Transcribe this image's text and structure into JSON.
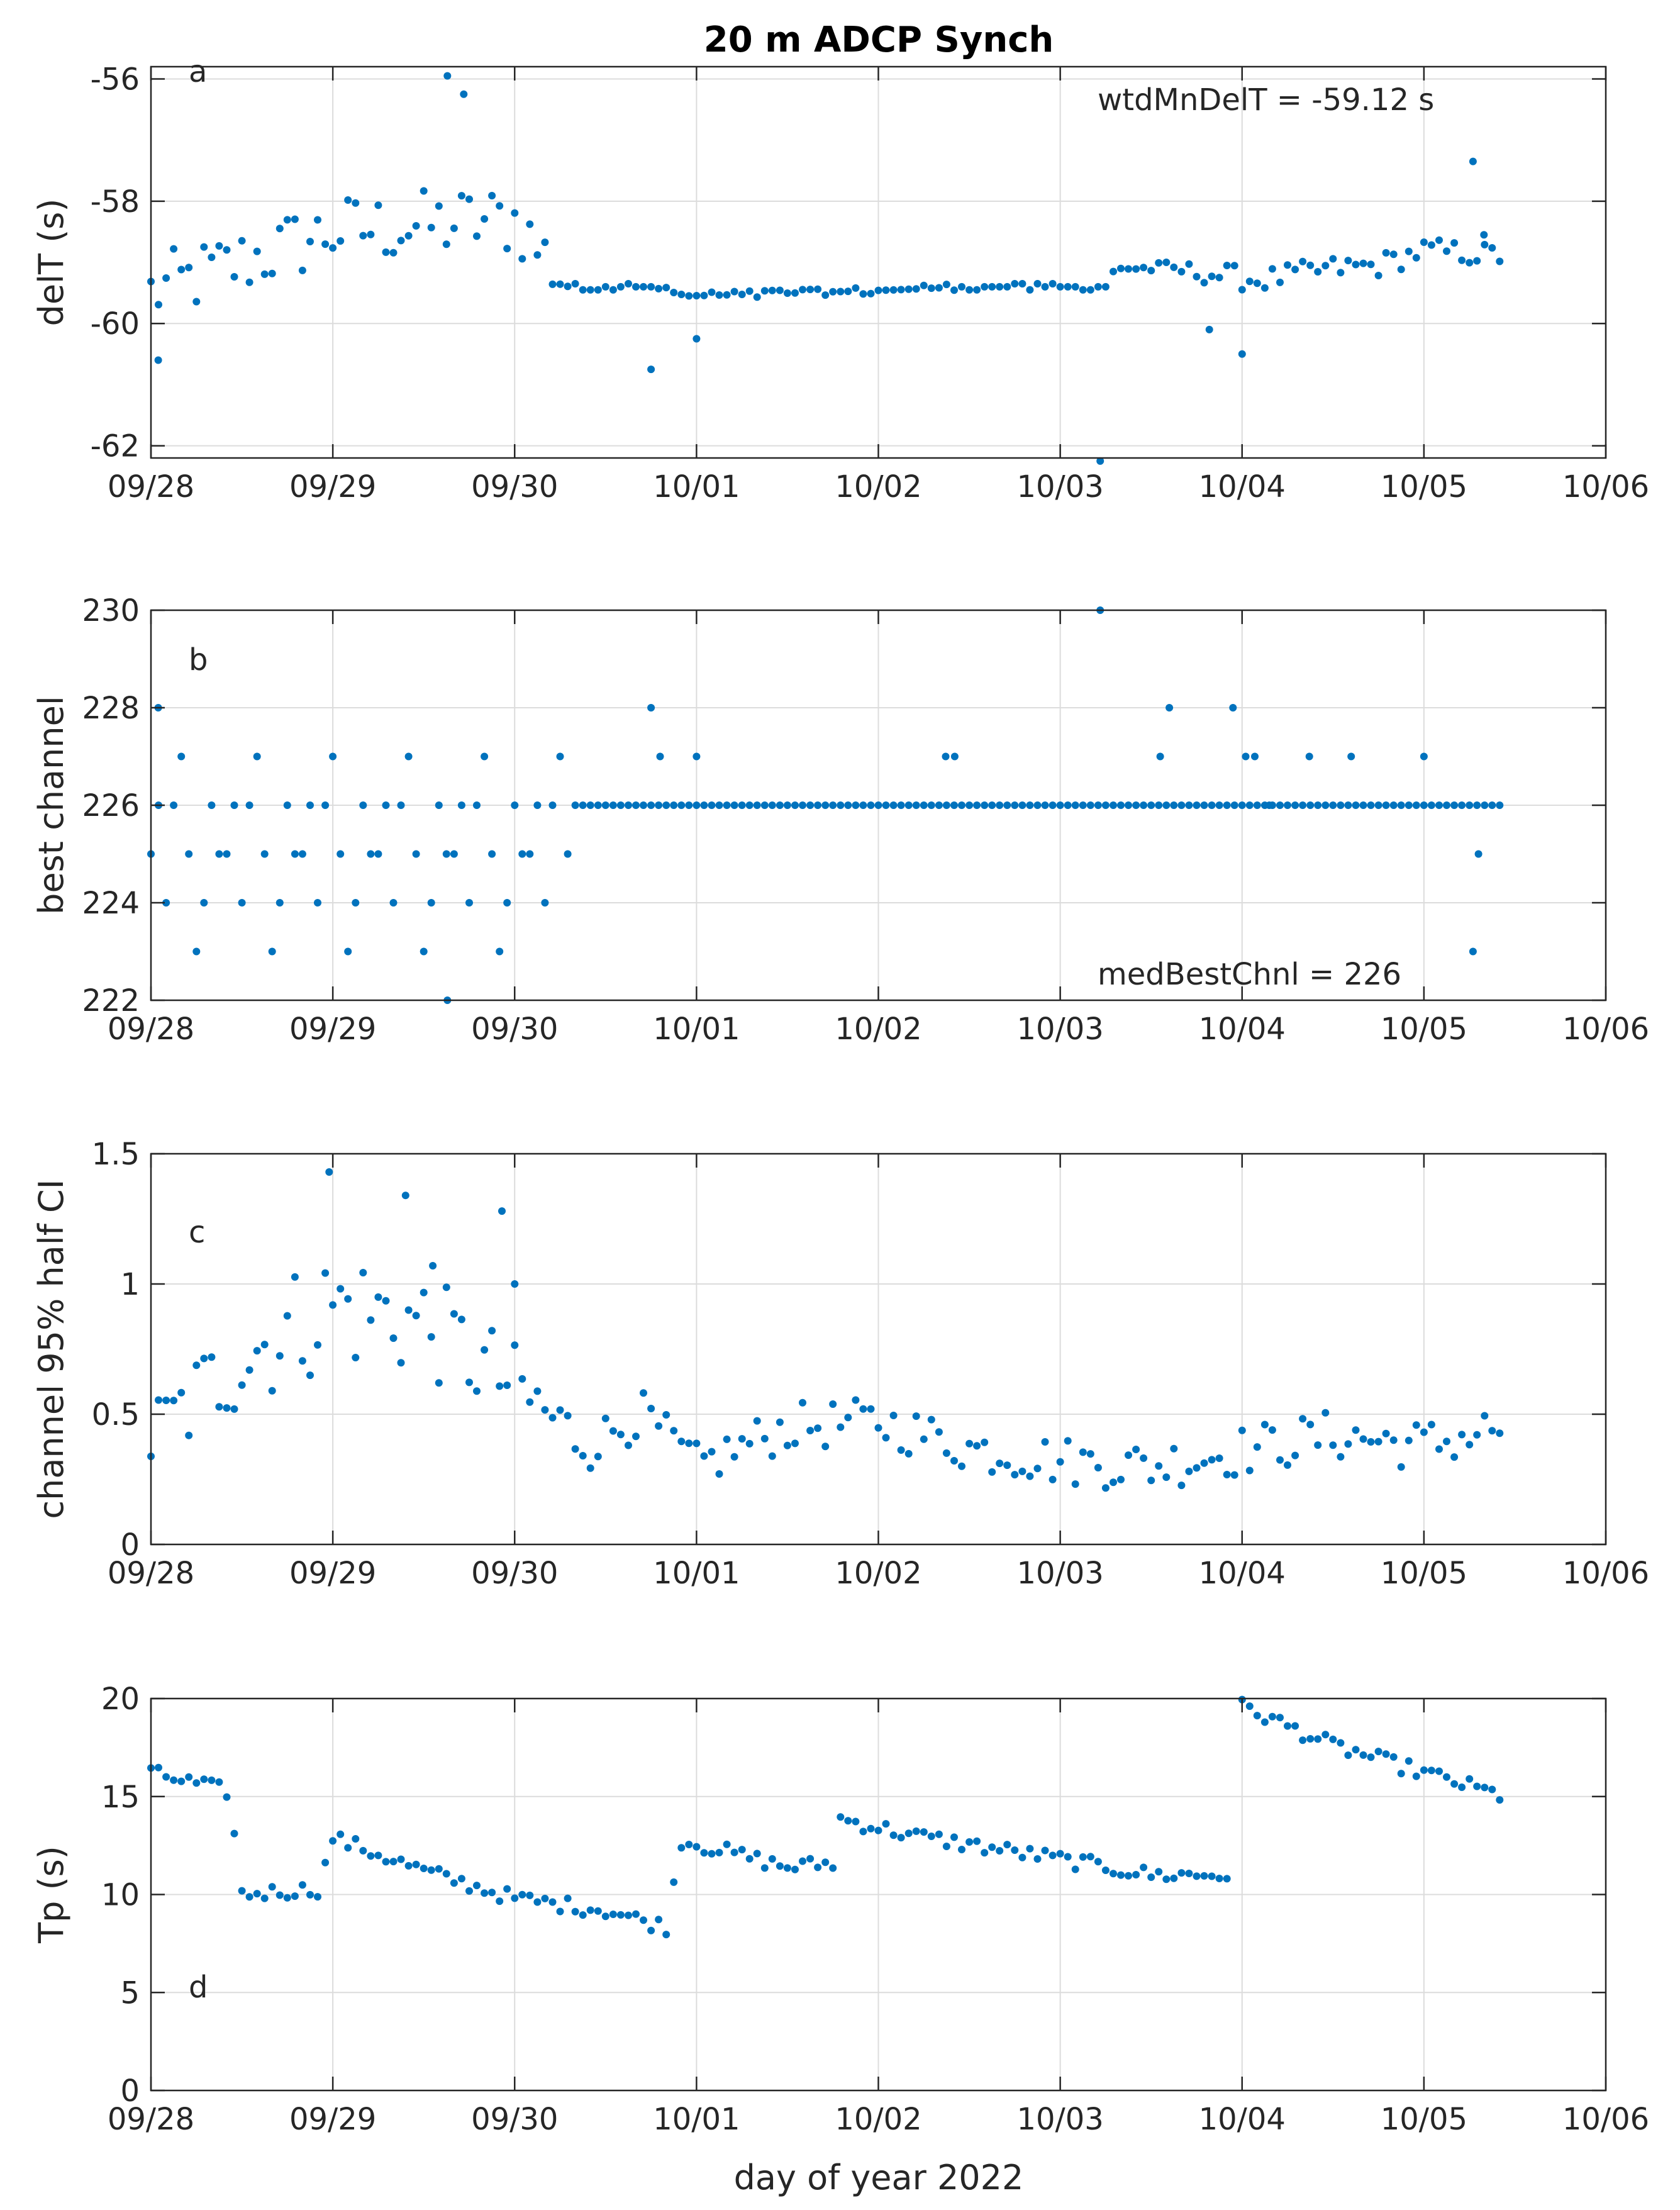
{
  "title": "20 m ADCP Synch",
  "xlabel": "day of year 2022",
  "x_tick_labels": [
    "09/28",
    "09/29",
    "09/30",
    "10/01",
    "10/02",
    "10/03",
    "10/04",
    "10/05",
    "10/06"
  ],
  "colors": {
    "marker": "#0072BD",
    "grid": "#dcdcdc",
    "axes": "#262626"
  },
  "chart_data": [
    {
      "type": "scatter",
      "panel_label": "a",
      "ylabel": "delT (s)",
      "ylim": [
        -62.2,
        -55.8
      ],
      "yticks": [
        -62,
        -60,
        -58,
        -56
      ],
      "xlim": [
        0,
        8
      ],
      "annotation": "wtdMnDelT = -59.12 s",
      "generator": {
        "knots": [
          [
            0,
            -59.5
          ],
          [
            1,
            -58.5
          ],
          [
            2,
            -58.3
          ],
          [
            2.3,
            -59.4
          ],
          [
            2.75,
            -59.4
          ],
          [
            2.95,
            -59.55
          ],
          [
            3.55,
            -59.5
          ],
          [
            4.1,
            -59.45
          ],
          [
            4.45,
            -59.4
          ],
          [
            5.25,
            -59.4
          ],
          [
            5.3,
            -59.1
          ],
          [
            5.6,
            -59.1
          ],
          [
            6.1,
            -59.3
          ],
          [
            6.5,
            -59.1
          ],
          [
            6.75,
            -59.05
          ],
          [
            7.0,
            -58.8
          ],
          [
            7.45,
            -58.9
          ]
        ],
        "noise": [
          [
            0,
            1.2
          ],
          [
            2.25,
            1.2
          ],
          [
            2.3,
            0.05
          ],
          [
            5.3,
            0.08
          ],
          [
            5.9,
            0.4
          ],
          [
            7.45,
            0.4
          ]
        ],
        "x_end": 7.44
      },
      "outliers": [
        [
          0.04,
          -60.6
        ],
        [
          1.63,
          -55.95
        ],
        [
          1.72,
          -56.25
        ],
        [
          2.75,
          -60.75
        ],
        [
          3.0,
          -60.25
        ],
        [
          5.22,
          -62.25
        ],
        [
          5.82,
          -60.1
        ],
        [
          6.0,
          -60.5
        ],
        [
          7.27,
          -57.35
        ],
        [
          7.33,
          -58.55
        ]
      ]
    },
    {
      "type": "scatter",
      "panel_label": "b",
      "ylabel": "best channel",
      "ylim": [
        222,
        230
      ],
      "yticks": [
        222,
        224,
        226,
        228,
        230
      ],
      "xlim": [
        0,
        8
      ],
      "annotation": "medBestChnl = 226",
      "generator": {
        "base": 226,
        "early_end": 2.3,
        "early_values": [
          225,
          226,
          224,
          226,
          227,
          225,
          223,
          224,
          226,
          225
        ],
        "x_end": 7.44
      },
      "outliers": [
        [
          0.04,
          228
        ],
        [
          1.63,
          222
        ],
        [
          2.75,
          228
        ],
        [
          2.8,
          227
        ],
        [
          3.0,
          227
        ],
        [
          4.37,
          227
        ],
        [
          4.42,
          227
        ],
        [
          5.22,
          230
        ],
        [
          5.55,
          227
        ],
        [
          5.6,
          228
        ],
        [
          5.95,
          228
        ],
        [
          6.02,
          227
        ],
        [
          6.07,
          227
        ],
        [
          6.15,
          226
        ],
        [
          6.37,
          227
        ],
        [
          6.6,
          227
        ],
        [
          7.0,
          227
        ],
        [
          7.27,
          223
        ],
        [
          7.3,
          225
        ]
      ]
    },
    {
      "type": "scatter",
      "panel_label": "c",
      "ylabel": "channel 95% half CI",
      "ylim": [
        0,
        1.5
      ],
      "yticks": [
        0,
        0.5,
        1,
        1.5
      ],
      "xlim": [
        0,
        8
      ],
      "generator": {
        "knots": [
          [
            0,
            0.4
          ],
          [
            0.5,
            0.72
          ],
          [
            1.0,
            0.92
          ],
          [
            1.5,
            0.85
          ],
          [
            2.0,
            0.6
          ],
          [
            2.4,
            0.38
          ],
          [
            2.7,
            0.5
          ],
          [
            3.0,
            0.3
          ],
          [
            3.5,
            0.45
          ],
          [
            4.0,
            0.47
          ],
          [
            4.5,
            0.37
          ],
          [
            5.0,
            0.32
          ],
          [
            5.5,
            0.3
          ],
          [
            6.0,
            0.36
          ],
          [
            6.5,
            0.42
          ],
          [
            7.0,
            0.38
          ],
          [
            7.44,
            0.45
          ]
        ],
        "noise": [
          [
            0,
            0.35
          ],
          [
            1.0,
            0.5
          ],
          [
            2.0,
            0.35
          ],
          [
            2.5,
            0.18
          ],
          [
            7.44,
            0.2
          ]
        ],
        "x_end": 7.44
      },
      "outliers": [
        [
          0.98,
          1.43
        ],
        [
          1.4,
          1.34
        ],
        [
          1.55,
          1.07
        ],
        [
          1.93,
          1.28
        ],
        [
          2.0,
          1.0
        ]
      ]
    },
    {
      "type": "scatter",
      "panel_label": "d",
      "ylabel": "Tp (s)",
      "ylim": [
        0,
        20
      ],
      "yticks": [
        0,
        5,
        10,
        15,
        20
      ],
      "xlim": [
        0,
        8
      ],
      "generator": {
        "knots": [
          [
            0,
            16.2
          ],
          [
            0.45,
            15.2
          ],
          [
            0.47,
            10.0
          ],
          [
            0.95,
            10.3
          ],
          [
            0.97,
            13.0
          ],
          [
            1.5,
            11.2
          ],
          [
            2.0,
            9.8
          ],
          [
            2.5,
            9.2
          ],
          [
            2.85,
            8.3
          ],
          [
            2.9,
            12.8
          ],
          [
            3.5,
            11.4
          ],
          [
            3.75,
            11.6
          ],
          [
            3.77,
            13.9
          ],
          [
            4.2,
            13.0
          ],
          [
            4.6,
            12.4
          ],
          [
            5.0,
            11.8
          ],
          [
            5.5,
            11.0
          ],
          [
            5.95,
            11.0
          ],
          [
            6.0,
            19.6
          ],
          [
            6.5,
            17.6
          ],
          [
            7.44,
            15.0
          ]
        ],
        "noise": [
          [
            0,
            0.8
          ],
          [
            7.44,
            0.8
          ]
        ],
        "x_end": 7.44,
        "gaps": [
          [
            5.95,
            6.0
          ]
        ]
      },
      "outliers": []
    }
  ]
}
